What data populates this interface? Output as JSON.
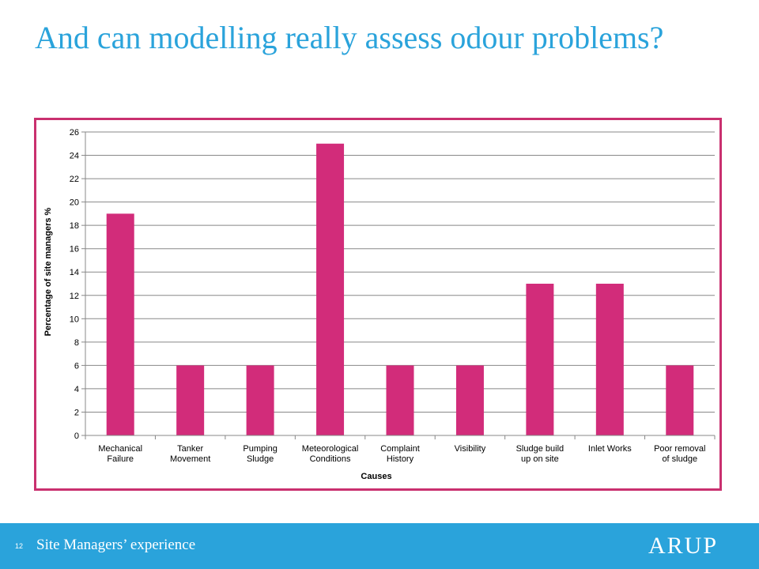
{
  "slide": {
    "title": "And can modelling really assess odour problems?",
    "page_number": "12",
    "footer_text": "Site Managers’ experience",
    "logo_text": "ARUP"
  },
  "colors": {
    "title": "#2aa3db",
    "footer_bg": "#2aa3db",
    "frame_border": "#c9306f",
    "bar": "#d22c7a",
    "grid": "#888888"
  },
  "chart_data": {
    "type": "bar",
    "categories": [
      [
        "Mechanical",
        "Failure"
      ],
      [
        "Tanker",
        "Movement"
      ],
      [
        "Pumping",
        "Sludge"
      ],
      [
        "Meteorological",
        "Conditions"
      ],
      [
        "Complaint",
        "History"
      ],
      [
        "Visibility"
      ],
      [
        "Sludge build",
        "up on site"
      ],
      [
        "Inlet Works"
      ],
      [
        "Poor removal",
        "of sludge"
      ]
    ],
    "values": [
      19,
      6,
      6,
      25,
      6,
      6,
      13,
      13,
      6
    ],
    "title": "",
    "xlabel": "Causes",
    "ylabel": "Percentage of site managers %",
    "ylim": [
      0,
      26
    ],
    "yticks": [
      0,
      2,
      4,
      6,
      8,
      10,
      12,
      14,
      16,
      18,
      20,
      22,
      24,
      26
    ],
    "grid": true,
    "legend": false
  }
}
